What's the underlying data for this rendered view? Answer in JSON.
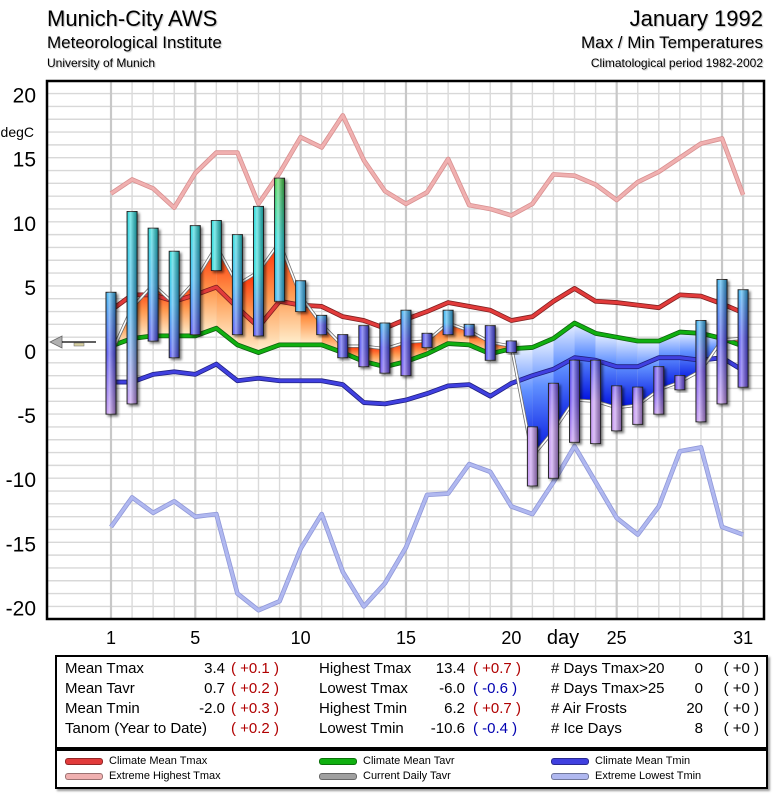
{
  "header": {
    "station": "Munich-City AWS",
    "institute": "Meteorological Institute",
    "university": "University of Munich",
    "month": "January 1992",
    "subtitle": "Max / Min Temperatures",
    "period": "Climatological period 1982-2002"
  },
  "colors": {
    "climate_mean_tmax": "#e23b3b",
    "extreme_highest_tmax": "#f0b0b0",
    "climate_mean_tavr": "#10b010",
    "current_daily_tavr": "#a0a0a0",
    "climate_mean_tmin": "#4040e0",
    "extreme_lowest_tmin": "#b0b8f0"
  },
  "chart_data": {
    "type": "bar",
    "title": "Max / Min Temperatures",
    "xlabel": "day",
    "ylabel": "degC",
    "xlim": [
      1,
      31
    ],
    "ylim": [
      -20,
      20
    ],
    "xticks": [
      "1",
      "5",
      "10",
      "15",
      "20",
      "25",
      "31"
    ],
    "yticks": [
      "20",
      "15",
      "10",
      "5",
      "0",
      "-5",
      "-10",
      "-15",
      "-20"
    ],
    "grid": true,
    "days": [
      1,
      2,
      3,
      4,
      5,
      6,
      7,
      8,
      9,
      10,
      11,
      12,
      13,
      14,
      15,
      16,
      17,
      18,
      19,
      20,
      21,
      22,
      23,
      24,
      25,
      26,
      27,
      28,
      29,
      30,
      31
    ],
    "daily_tmax": [
      4.5,
      10.8,
      9.5,
      7.7,
      9.7,
      10.1,
      9.0,
      11.2,
      13.4,
      5.4,
      2.7,
      1.2,
      1.9,
      2.1,
      3.1,
      1.3,
      3.1,
      2.0,
      1.9,
      0.7,
      -6.0,
      -2.6,
      -0.8,
      -0.8,
      -2.8,
      -2.9,
      -1.3,
      -2.0,
      2.3,
      5.5,
      4.7
    ],
    "daily_tmin": [
      -5.0,
      -4.2,
      0.7,
      -0.6,
      1.2,
      6.2,
      1.2,
      1.1,
      3.8,
      3.0,
      1.2,
      -0.6,
      -1.3,
      -1.8,
      -2.0,
      0.2,
      1.2,
      1.1,
      -0.8,
      -0.2,
      -10.6,
      -10.0,
      -7.2,
      -7.3,
      -6.3,
      -5.8,
      -5.0,
      -3.1,
      -5.6,
      -4.2,
      -2.9
    ],
    "series": [
      {
        "name": "Climate Mean Tmax",
        "values": [
          3.1,
          4.3,
          4.3,
          3.8,
          4.3,
          4.9,
          3.3,
          1.8,
          3.8,
          3.5,
          3.4,
          2.6,
          2.3,
          1.7,
          2.4,
          3.0,
          3.7,
          3.4,
          3.1,
          2.3,
          2.6,
          3.8,
          4.8,
          3.8,
          3.7,
          3.5,
          3.3,
          4.3,
          4.2,
          3.6,
          2.9
        ]
      },
      {
        "name": "Climate Mean Tavr",
        "values": [
          0.3,
          0.9,
          1.1,
          1.1,
          1.1,
          1.7,
          0.4,
          -0.2,
          0.4,
          0.4,
          0.4,
          -0.2,
          -0.9,
          -1.3,
          -0.9,
          -0.3,
          0.5,
          0.4,
          -0.3,
          0.1,
          0.2,
          0.9,
          2.1,
          1.3,
          1.0,
          0.7,
          0.7,
          1.4,
          1.3,
          0.9,
          0.3
        ]
      },
      {
        "name": "Climate Mean Tmin",
        "values": [
          -2.5,
          -2.5,
          -1.9,
          -1.7,
          -1.9,
          -1.1,
          -2.4,
          -2.2,
          -2.4,
          -2.4,
          -2.4,
          -2.7,
          -4.1,
          -4.2,
          -3.9,
          -3.4,
          -2.8,
          -2.7,
          -3.6,
          -2.6,
          -2.0,
          -1.5,
          -0.6,
          -0.8,
          -1.3,
          -1.3,
          -0.6,
          -0.6,
          -0.8,
          -0.6,
          -1.6
        ]
      },
      {
        "name": "Current Daily Tavr",
        "values": [
          -0.3,
          3.3,
          5.1,
          3.6,
          5.4,
          8.1,
          5.1,
          6.1,
          8.4,
          4.2,
          2.0,
          0.3,
          0.3,
          0.1,
          0.6,
          0.7,
          2.1,
          1.5,
          0.6,
          0.3,
          -8.3,
          -6.3,
          -3.9,
          -4.0,
          -4.5,
          -4.3,
          -3.1,
          -2.5,
          -1.6,
          0.8,
          0.9
        ]
      },
      {
        "name": "Extreme Highest Tmax",
        "values": [
          12.2,
          13.3,
          12.6,
          11.1,
          13.8,
          15.4,
          15.4,
          11.4,
          13.8,
          16.6,
          15.8,
          18.3,
          14.8,
          12.4,
          11.4,
          12.3,
          14.9,
          11.3,
          11.0,
          10.5,
          11.4,
          13.7,
          13.6,
          12.9,
          11.7,
          13.1,
          13.9,
          15.0,
          16.1,
          16.5,
          12.1
        ]
      },
      {
        "name": "Extreme Lowest Tmin",
        "values": [
          -13.8,
          -11.5,
          -12.7,
          -11.8,
          -13.0,
          -12.8,
          -19.0,
          -20.3,
          -19.6,
          -15.5,
          -12.8,
          -17.3,
          -20.0,
          -18.2,
          -15.4,
          -11.3,
          -11.2,
          -8.9,
          -9.5,
          -12.2,
          -12.8,
          -10.3,
          -7.5,
          -10.3,
          -13.1,
          -14.4,
          -12.2,
          -7.9,
          -7.6,
          -13.8,
          -14.4
        ]
      }
    ]
  },
  "stats": {
    "col1": [
      {
        "label": "Mean Tmax",
        "value": "3.4",
        "anomaly": "( +0.1 )",
        "sign": "pos"
      },
      {
        "label": "Mean Tavr",
        "value": "0.7",
        "anomaly": "( +0.2 )",
        "sign": "pos"
      },
      {
        "label": "Mean Tmin",
        "value": "-2.0",
        "anomaly": "( +0.3 )",
        "sign": "pos"
      },
      {
        "label": "Tanom (Year to Date)",
        "value": "",
        "anomaly": "( +0.2 )",
        "sign": "pos"
      }
    ],
    "col2": [
      {
        "label": "Highest Tmax",
        "value": "13.4",
        "anomaly": "( +0.7 )",
        "sign": "pos"
      },
      {
        "label": "Lowest Tmax",
        "value": "-6.0",
        "anomaly": "( -0.6 )",
        "sign": "neg"
      },
      {
        "label": "Highest Tmin",
        "value": "6.2",
        "anomaly": "( +0.7 )",
        "sign": "pos"
      },
      {
        "label": "Lowest Tmin",
        "value": "-10.6",
        "anomaly": "( -0.4 )",
        "sign": "neg"
      }
    ],
    "col3": [
      {
        "label": "# Days Tmax>20",
        "value": "0",
        "anomaly": "( +0 )"
      },
      {
        "label": "# Days Tmax>25",
        "value": "0",
        "anomaly": "( +0 )"
      },
      {
        "label": "# Air Frosts",
        "value": "20",
        "anomaly": "( +0 )"
      },
      {
        "label": "# Ice Days",
        "value": "8",
        "anomaly": "( +0 )"
      }
    ]
  },
  "legend": [
    {
      "label": "Climate Mean Tmax",
      "color_key": "climate_mean_tmax"
    },
    {
      "label": "Extreme Highest Tmax",
      "color_key": "extreme_highest_tmax"
    },
    {
      "label": "Climate Mean Tavr",
      "color_key": "climate_mean_tavr"
    },
    {
      "label": "Current Daily Tavr",
      "color_key": "current_daily_tavr"
    },
    {
      "label": "Climate Mean Tmin",
      "color_key": "climate_mean_tmin"
    },
    {
      "label": "Extreme Lowest Tmin",
      "color_key": "extreme_lowest_tmin"
    }
  ]
}
